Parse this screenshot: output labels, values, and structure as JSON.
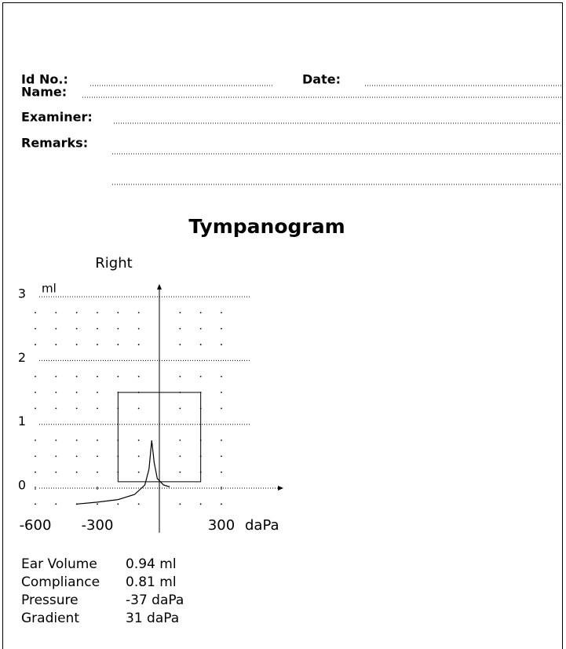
{
  "form": {
    "fields": [
      "Id No.:",
      "Date:",
      "Name:",
      "Examiner:",
      "Remarks:"
    ]
  },
  "chart_data": {
    "type": "line",
    "title": "Tympanogram",
    "subtitle": "Right",
    "y_label": "ml",
    "x_label": "daPa",
    "xlim": [
      -600,
      600
    ],
    "ylim": [
      -0.7,
      3.2
    ],
    "xticks": [
      -600,
      -300,
      300
    ],
    "yticks": [
      0,
      1,
      2,
      3
    ],
    "box": {
      "x": [
        -200,
        200
      ],
      "y": [
        0.1,
        1.5
      ]
    },
    "x": [
      -400,
      -300,
      -200,
      -120,
      -70,
      -50,
      -37,
      -25,
      -10,
      20,
      50
    ],
    "series": [
      {
        "name": "Right",
        "color": "#000000",
        "values": [
          -0.25,
          -0.22,
          -0.18,
          -0.1,
          0.05,
          0.3,
          0.75,
          0.4,
          0.15,
          0.05,
          0.02
        ]
      }
    ]
  },
  "results": [
    {
      "label": "Ear Volume",
      "value": "0.94 ml"
    },
    {
      "label": "Compliance",
      "value": "0.81 ml"
    },
    {
      "label": "Pressure",
      "value": "-37 daPa"
    },
    {
      "label": "Gradient",
      "value": "31 daPa"
    }
  ]
}
